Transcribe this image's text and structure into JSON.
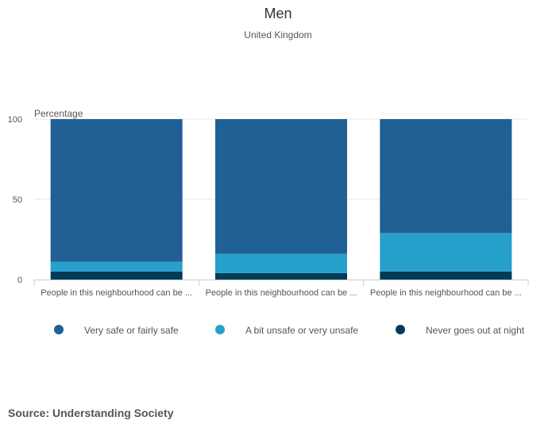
{
  "source": "Source: Understanding Society",
  "colors": {
    "safe": "#206095",
    "unsafe": "#27a0cc",
    "never": "#003c57",
    "grid": "#e6e6e6",
    "axis": "#cccccc"
  },
  "chart_data": {
    "type": "bar",
    "stacked": true,
    "title": "Men",
    "subtitle": "United Kingdom",
    "ylabel": "Percentage",
    "xlabel": "",
    "ylim": [
      0,
      100
    ],
    "yticks": [
      0,
      50,
      100
    ],
    "categories": [
      "People in this neighbourhood can be ...",
      "People in this neighbourhood can be ...",
      "People in this neighbourhood can be ..."
    ],
    "series": [
      {
        "name": "Never goes out at night",
        "color": "#003c57",
        "values": [
          5,
          4,
          5
        ]
      },
      {
        "name": "A bit unsafe or very unsafe",
        "color": "#27a0cc",
        "values": [
          6,
          12,
          24
        ]
      },
      {
        "name": "Very safe or fairly safe",
        "color": "#206095",
        "values": [
          89,
          84,
          71
        ]
      }
    ],
    "legend": [
      {
        "name": "Very safe or fairly safe",
        "color": "#206095"
      },
      {
        "name": "A bit unsafe or very unsafe",
        "color": "#27a0cc"
      },
      {
        "name": "Never goes out at night",
        "color": "#003c57"
      }
    ],
    "legend_position": "bottom"
  }
}
